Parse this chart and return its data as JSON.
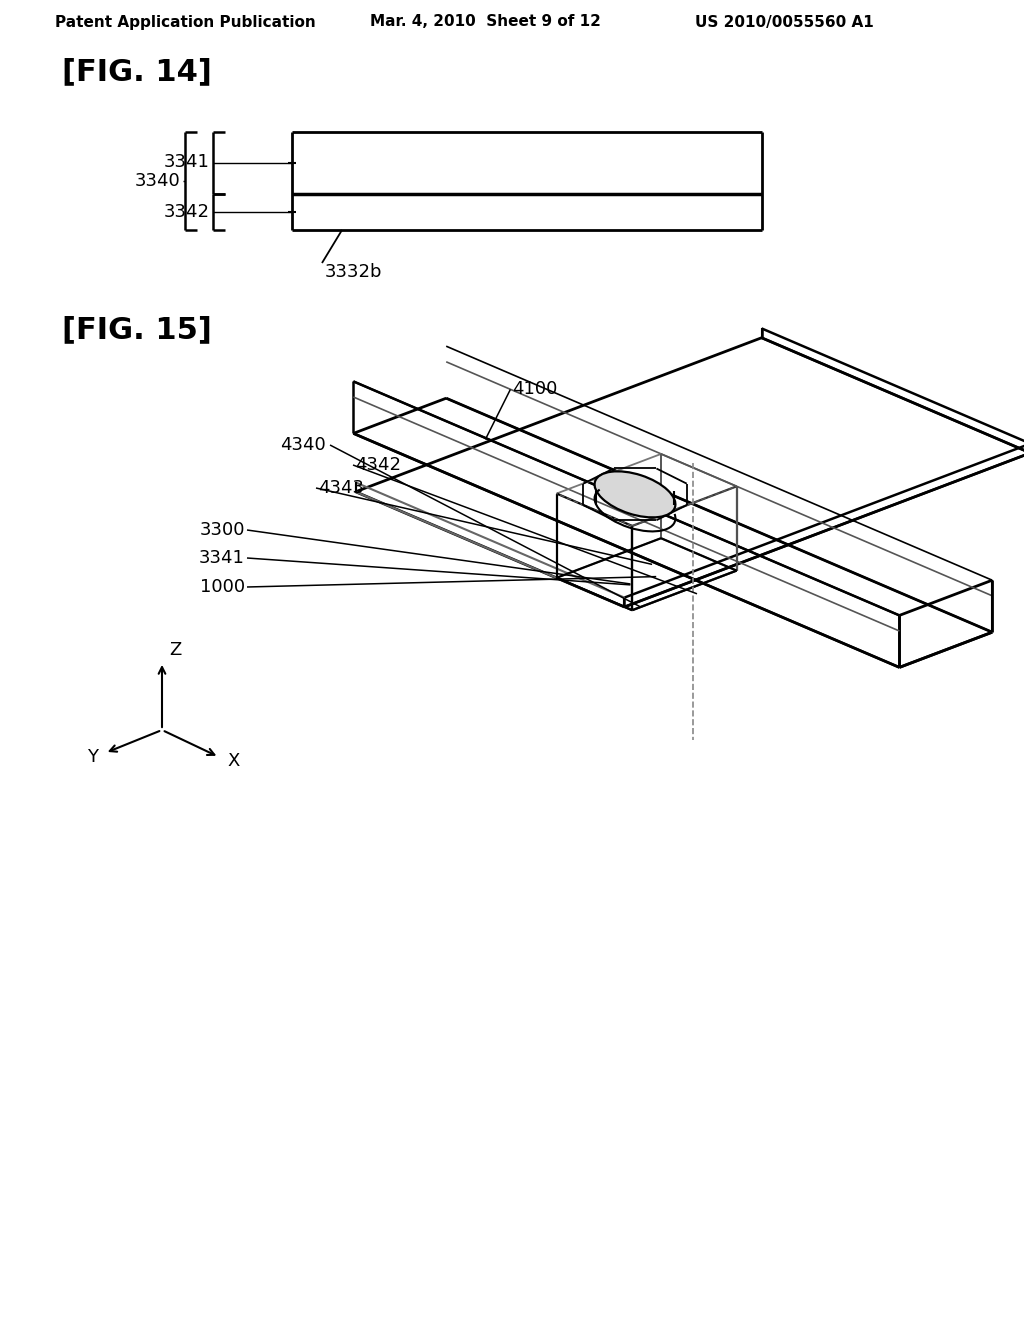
{
  "bg_color": "#ffffff",
  "header_text": "Patent Application Publication",
  "header_date": "Mar. 4, 2010  Sheet 9 of 12",
  "header_patent": "US 2010/0055560 A1",
  "fig14_title": "[FIG. 14]",
  "fig15_title": "[FIG. 15]",
  "text_color": "#000000",
  "line_color": "#000000"
}
